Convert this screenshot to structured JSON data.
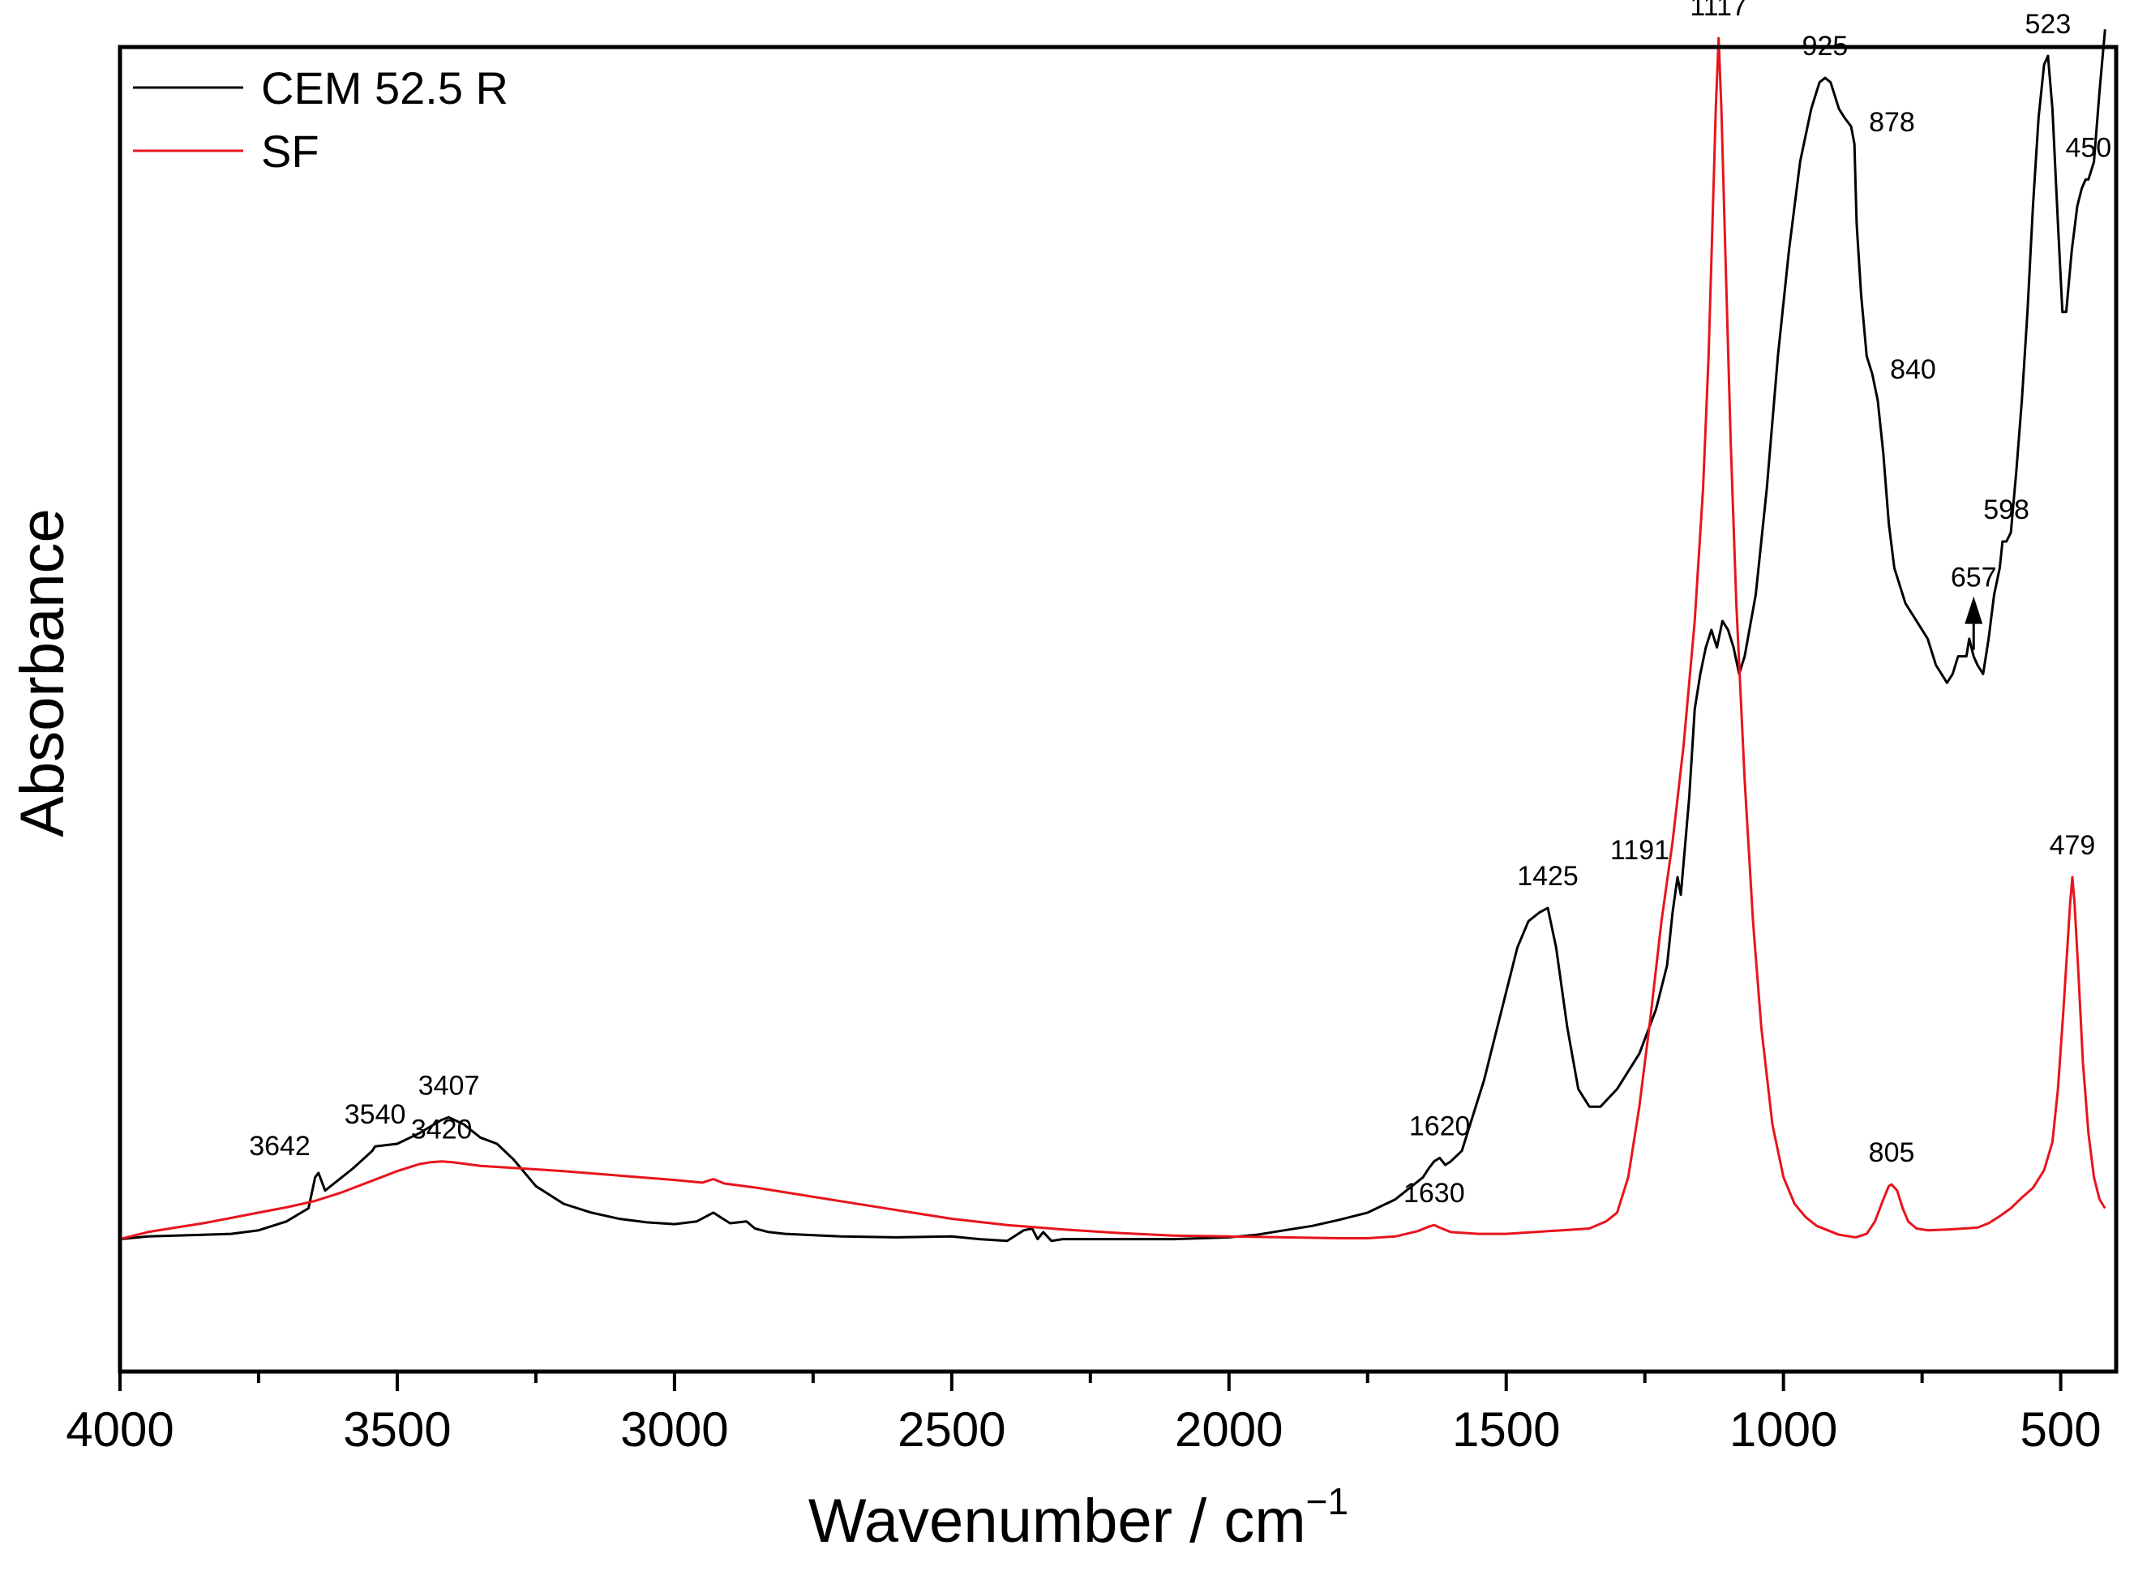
{
  "chart_data": {
    "type": "line",
    "title": "",
    "xlabel": "Wavenumber / cm",
    "xlabel_sup": "−1",
    "ylabel": "Absorbance",
    "xlim": [
      4000,
      400
    ],
    "x_reversed": true,
    "ylim": [
      -0.15,
      1.35
    ],
    "y_ticks_shown": false,
    "x_ticks": [
      "4000",
      "3500",
      "3000",
      "2500",
      "2000",
      "1500",
      "1000",
      "500"
    ],
    "x_tick_values": [
      4000,
      3500,
      3000,
      2500,
      2000,
      1500,
      1000,
      500
    ],
    "legend_position": "top-left",
    "series": [
      {
        "name": "CEM 52.5 R",
        "color": "#000000",
        "points": [
          [
            4000,
            0.0
          ],
          [
            3950,
            0.003
          ],
          [
            3900,
            0.004
          ],
          [
            3850,
            0.005
          ],
          [
            3800,
            0.006
          ],
          [
            3750,
            0.01
          ],
          [
            3700,
            0.02
          ],
          [
            3660,
            0.035
          ],
          [
            3648,
            0.07
          ],
          [
            3642,
            0.075
          ],
          [
            3630,
            0.055
          ],
          [
            3620,
            0.06
          ],
          [
            3580,
            0.08
          ],
          [
            3545,
            0.1
          ],
          [
            3540,
            0.105
          ],
          [
            3500,
            0.108
          ],
          [
            3460,
            0.12
          ],
          [
            3420,
            0.135
          ],
          [
            3407,
            0.138
          ],
          [
            3380,
            0.13
          ],
          [
            3350,
            0.115
          ],
          [
            3320,
            0.108
          ],
          [
            3290,
            0.09
          ],
          [
            3250,
            0.06
          ],
          [
            3200,
            0.04
          ],
          [
            3150,
            0.03
          ],
          [
            3100,
            0.023
          ],
          [
            3050,
            0.019
          ],
          [
            3000,
            0.017
          ],
          [
            2960,
            0.02
          ],
          [
            2930,
            0.03
          ],
          [
            2900,
            0.018
          ],
          [
            2870,
            0.02
          ],
          [
            2855,
            0.012
          ],
          [
            2830,
            0.008
          ],
          [
            2800,
            0.006
          ],
          [
            2700,
            0.003
          ],
          [
            2600,
            0.002
          ],
          [
            2500,
            0.003
          ],
          [
            2450,
            0.0
          ],
          [
            2400,
            -0.002
          ],
          [
            2370,
            0.01
          ],
          [
            2355,
            0.012
          ],
          [
            2345,
            0.0
          ],
          [
            2335,
            0.008
          ],
          [
            2320,
            -0.002
          ],
          [
            2300,
            0.0
          ],
          [
            2200,
            0.0
          ],
          [
            2100,
            0.0
          ],
          [
            2000,
            0.002
          ],
          [
            1950,
            0.005
          ],
          [
            1900,
            0.01
          ],
          [
            1850,
            0.015
          ],
          [
            1800,
            0.022
          ],
          [
            1750,
            0.03
          ],
          [
            1700,
            0.045
          ],
          [
            1670,
            0.06
          ],
          [
            1650,
            0.07
          ],
          [
            1640,
            0.08
          ],
          [
            1630,
            0.088
          ],
          [
            1620,
            0.092
          ],
          [
            1610,
            0.084
          ],
          [
            1600,
            0.088
          ],
          [
            1580,
            0.1
          ],
          [
            1560,
            0.14
          ],
          [
            1540,
            0.18
          ],
          [
            1520,
            0.23
          ],
          [
            1500,
            0.28
          ],
          [
            1480,
            0.33
          ],
          [
            1460,
            0.36
          ],
          [
            1440,
            0.37
          ],
          [
            1425,
            0.375
          ],
          [
            1410,
            0.33
          ],
          [
            1390,
            0.24
          ],
          [
            1370,
            0.17
          ],
          [
            1350,
            0.15
          ],
          [
            1330,
            0.15
          ],
          [
            1300,
            0.17
          ],
          [
            1260,
            0.21
          ],
          [
            1230,
            0.26
          ],
          [
            1210,
            0.31
          ],
          [
            1200,
            0.37
          ],
          [
            1191,
            0.41
          ],
          [
            1185,
            0.39
          ],
          [
            1170,
            0.5
          ],
          [
            1160,
            0.6
          ],
          [
            1150,
            0.64
          ],
          [
            1140,
            0.67
          ],
          [
            1130,
            0.69
          ],
          [
            1120,
            0.67
          ],
          [
            1110,
            0.7
          ],
          [
            1100,
            0.69
          ],
          [
            1090,
            0.67
          ],
          [
            1080,
            0.64
          ],
          [
            1070,
            0.66
          ],
          [
            1050,
            0.73
          ],
          [
            1030,
            0.85
          ],
          [
            1010,
            1.0
          ],
          [
            990,
            1.12
          ],
          [
            970,
            1.22
          ],
          [
            950,
            1.28
          ],
          [
            935,
            1.31
          ],
          [
            925,
            1.315
          ],
          [
            915,
            1.31
          ],
          [
            900,
            1.28
          ],
          [
            890,
            1.27
          ],
          [
            878,
            1.26
          ],
          [
            872,
            1.24
          ],
          [
            868,
            1.15
          ],
          [
            860,
            1.07
          ],
          [
            850,
            1.0
          ],
          [
            840,
            0.98
          ],
          [
            830,
            0.95
          ],
          [
            820,
            0.89
          ],
          [
            810,
            0.81
          ],
          [
            800,
            0.76
          ],
          [
            780,
            0.72
          ],
          [
            760,
            0.7
          ],
          [
            740,
            0.68
          ],
          [
            725,
            0.65
          ],
          [
            715,
            0.64
          ],
          [
            705,
            0.63
          ],
          [
            695,
            0.64
          ],
          [
            685,
            0.66
          ],
          [
            670,
            0.66
          ],
          [
            665,
            0.68
          ],
          [
            657,
            0.66
          ],
          [
            650,
            0.65
          ],
          [
            640,
            0.64
          ],
          [
            630,
            0.68
          ],
          [
            620,
            0.73
          ],
          [
            610,
            0.76
          ],
          [
            605,
            0.79
          ],
          [
            598,
            0.79
          ],
          [
            590,
            0.8
          ],
          [
            580,
            0.87
          ],
          [
            570,
            0.95
          ],
          [
            560,
            1.05
          ],
          [
            550,
            1.17
          ],
          [
            540,
            1.27
          ],
          [
            530,
            1.33
          ],
          [
            523,
            1.34
          ],
          [
            515,
            1.28
          ],
          [
            505,
            1.15
          ],
          [
            497,
            1.05
          ],
          [
            490,
            1.05
          ],
          [
            480,
            1.12
          ],
          [
            470,
            1.17
          ],
          [
            462,
            1.19
          ],
          [
            455,
            1.2
          ],
          [
            450,
            1.2
          ],
          [
            440,
            1.22
          ],
          [
            430,
            1.3
          ],
          [
            420,
            1.37
          ]
        ]
      },
      {
        "name": "SF",
        "color": "#e8141c",
        "points": [
          [
            4000,
            0.0
          ],
          [
            3950,
            0.008
          ],
          [
            3900,
            0.013
          ],
          [
            3850,
            0.018
          ],
          [
            3800,
            0.024
          ],
          [
            3750,
            0.03
          ],
          [
            3700,
            0.036
          ],
          [
            3650,
            0.043
          ],
          [
            3600,
            0.053
          ],
          [
            3550,
            0.065
          ],
          [
            3500,
            0.077
          ],
          [
            3460,
            0.085
          ],
          [
            3440,
            0.087
          ],
          [
            3420,
            0.088
          ],
          [
            3400,
            0.087
          ],
          [
            3350,
            0.083
          ],
          [
            3300,
            0.081
          ],
          [
            3250,
            0.079
          ],
          [
            3200,
            0.077
          ],
          [
            3100,
            0.072
          ],
          [
            3000,
            0.067
          ],
          [
            2950,
            0.064
          ],
          [
            2930,
            0.068
          ],
          [
            2910,
            0.063
          ],
          [
            2850,
            0.058
          ],
          [
            2800,
            0.053
          ],
          [
            2700,
            0.043
          ],
          [
            2600,
            0.033
          ],
          [
            2500,
            0.023
          ],
          [
            2400,
            0.016
          ],
          [
            2300,
            0.011
          ],
          [
            2200,
            0.007
          ],
          [
            2100,
            0.004
          ],
          [
            2000,
            0.003
          ],
          [
            1900,
            0.002
          ],
          [
            1800,
            0.001
          ],
          [
            1750,
            0.001
          ],
          [
            1700,
            0.003
          ],
          [
            1660,
            0.009
          ],
          [
            1640,
            0.014
          ],
          [
            1630,
            0.016
          ],
          [
            1620,
            0.013
          ],
          [
            1600,
            0.008
          ],
          [
            1550,
            0.006
          ],
          [
            1500,
            0.006
          ],
          [
            1450,
            0.008
          ],
          [
            1400,
            0.01
          ],
          [
            1350,
            0.012
          ],
          [
            1320,
            0.02
          ],
          [
            1300,
            0.03
          ],
          [
            1280,
            0.07
          ],
          [
            1260,
            0.15
          ],
          [
            1240,
            0.25
          ],
          [
            1220,
            0.36
          ],
          [
            1200,
            0.45
          ],
          [
            1180,
            0.56
          ],
          [
            1160,
            0.7
          ],
          [
            1145,
            0.85
          ],
          [
            1135,
            1.0
          ],
          [
            1128,
            1.15
          ],
          [
            1122,
            1.28
          ],
          [
            1117,
            1.36
          ],
          [
            1112,
            1.28
          ],
          [
            1105,
            1.12
          ],
          [
            1095,
            0.9
          ],
          [
            1085,
            0.72
          ],
          [
            1070,
            0.52
          ],
          [
            1055,
            0.36
          ],
          [
            1040,
            0.24
          ],
          [
            1020,
            0.13
          ],
          [
            1000,
            0.07
          ],
          [
            980,
            0.04
          ],
          [
            960,
            0.025
          ],
          [
            940,
            0.015
          ],
          [
            900,
            0.005
          ],
          [
            870,
            0.002
          ],
          [
            850,
            0.006
          ],
          [
            835,
            0.02
          ],
          [
            820,
            0.045
          ],
          [
            810,
            0.06
          ],
          [
            805,
            0.062
          ],
          [
            795,
            0.055
          ],
          [
            785,
            0.035
          ],
          [
            775,
            0.02
          ],
          [
            760,
            0.012
          ],
          [
            740,
            0.01
          ],
          [
            700,
            0.011
          ],
          [
            650,
            0.013
          ],
          [
            630,
            0.018
          ],
          [
            610,
            0.026
          ],
          [
            590,
            0.035
          ],
          [
            570,
            0.047
          ],
          [
            550,
            0.058
          ],
          [
            530,
            0.078
          ],
          [
            515,
            0.11
          ],
          [
            505,
            0.17
          ],
          [
            495,
            0.26
          ],
          [
            488,
            0.33
          ],
          [
            483,
            0.38
          ],
          [
            479,
            0.41
          ],
          [
            475,
            0.38
          ],
          [
            468,
            0.3
          ],
          [
            460,
            0.2
          ],
          [
            450,
            0.12
          ],
          [
            440,
            0.07
          ],
          [
            430,
            0.045
          ],
          [
            420,
            0.035
          ]
        ]
      }
    ],
    "annotations": [
      {
        "text": "3642",
        "series": 0,
        "x": 3642,
        "y": 0.075,
        "align": "left"
      },
      {
        "text": "3540",
        "series": 0,
        "x": 3540,
        "y": 0.105,
        "align": "center"
      },
      {
        "text": "3407",
        "series": 0,
        "x": 3407,
        "y": 0.138,
        "align": "center"
      },
      {
        "text": "3420",
        "series": 1,
        "x": 3420,
        "y": 0.088,
        "align": "center"
      },
      {
        "text": "1620",
        "series": 0,
        "x": 1620,
        "y": 0.092,
        "align": "center"
      },
      {
        "text": "1630",
        "series": 1,
        "x": 1630,
        "y": 0.016,
        "align": "center"
      },
      {
        "text": "1425",
        "series": 0,
        "x": 1425,
        "y": 0.375,
        "align": "center"
      },
      {
        "text": "1191",
        "series": 0,
        "x": 1191,
        "y": 0.41,
        "align": "left"
      },
      {
        "text": "1117",
        "series": 1,
        "x": 1117,
        "y": 1.36,
        "align": "center"
      },
      {
        "text": "925",
        "series": 0,
        "x": 925,
        "y": 1.315,
        "align": "center"
      },
      {
        "text": "878",
        "series": 0,
        "x": 878,
        "y": 1.26,
        "align": "right"
      },
      {
        "text": "840",
        "series": 0,
        "x": 840,
        "y": 0.98,
        "align": "right"
      },
      {
        "text": "805",
        "series": 1,
        "x": 805,
        "y": 0.062,
        "align": "center"
      },
      {
        "text": "657",
        "series": 0,
        "x": 657,
        "y": 0.66,
        "align": "center",
        "arrow": true
      },
      {
        "text": "598",
        "series": 0,
        "x": 598,
        "y": 0.79,
        "align": "center"
      },
      {
        "text": "523",
        "series": 0,
        "x": 523,
        "y": 1.34,
        "align": "center"
      },
      {
        "text": "450",
        "series": 0,
        "x": 450,
        "y": 1.2,
        "align": "center"
      },
      {
        "text": "479",
        "series": 1,
        "x": 479,
        "y": 0.41,
        "align": "center"
      }
    ]
  }
}
